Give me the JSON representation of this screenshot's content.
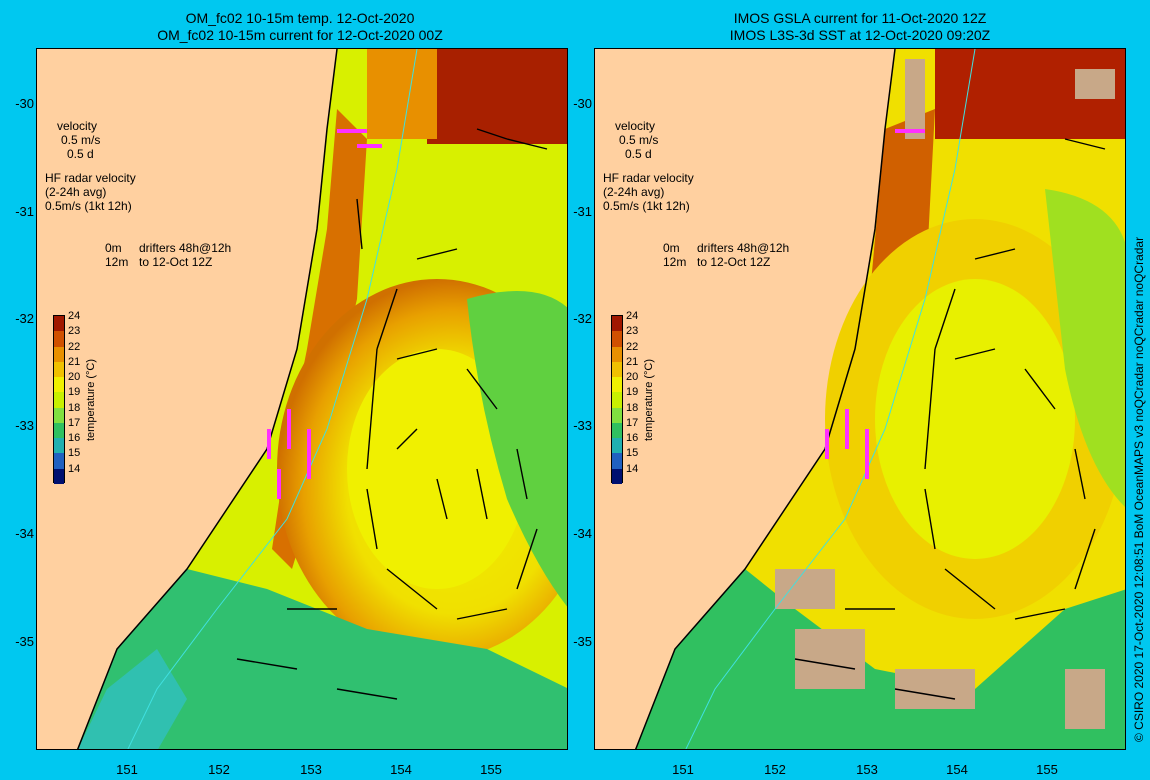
{
  "left": {
    "title1": "OM_fc02 10-15m temp. 12-Oct-2020",
    "title2": "OM_fc02 10-15m current for 12-Oct-2020 00Z"
  },
  "right": {
    "title1": "IMOS GSLA current for 11-Oct-2020 12Z",
    "title2": "IMOS L3S-3d SST at 12-Oct-2020 09:20Z"
  },
  "legend": {
    "velocity": "velocity",
    "velocity_scale": "0.5 m/s",
    "velocity_days": "0.5 d",
    "hf_title": "HF radar velocity",
    "hf_avg": "(2-24h avg)",
    "hf_scale": "0.5m/s (1kt 12h)",
    "drifter_0m": "0m",
    "drifter_48": "drifters 48h@12h",
    "drifter_12m": "12m",
    "drifter_date": "to 12-Oct 12Z"
  },
  "colorbar": {
    "title": "temperature (°C)",
    "ticks": [
      "24",
      "23",
      "22",
      "21",
      "20",
      "19",
      "18",
      "17",
      "16",
      "15",
      "14"
    ],
    "colors": [
      "#a01800",
      "#d05000",
      "#e89000",
      "#f0c000",
      "#f0f000",
      "#c8f000",
      "#80e040",
      "#30c060",
      "#20b0b0",
      "#2060c0",
      "#001070"
    ]
  },
  "axes": {
    "y_ticks": [
      "-30",
      "-31",
      "-32",
      "-33",
      "-34",
      "-35"
    ],
    "x_ticks": [
      "151",
      "152",
      "153",
      "154",
      "155"
    ]
  },
  "credit": "© CSIRO 2020  17-Oct-2020 12:08:51 BoM OceanMAPS v3 noQCradar noQCradar noQCradar"
}
